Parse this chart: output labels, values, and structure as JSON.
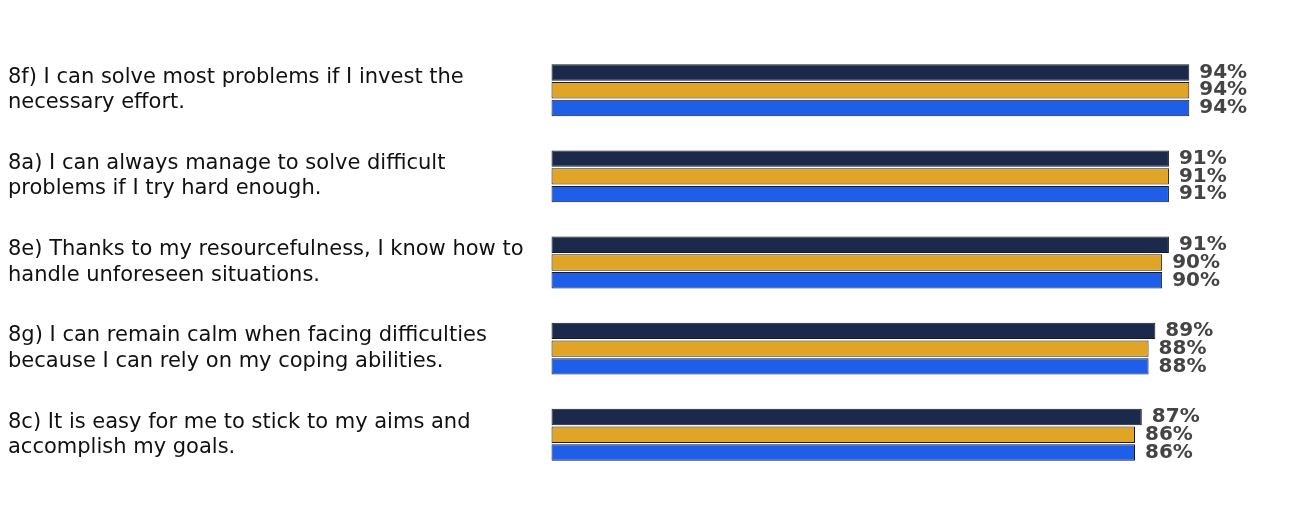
{
  "chart_data": {
    "type": "bar",
    "orientation": "horizontal",
    "categories": [
      "8f) I can solve most problems if I invest the necessary effort.",
      "8a) I can always manage to solve difficult problems if I try hard enough.",
      "8e) Thanks to my resourcefulness, I know how to handle unforeseen situations.",
      "8g) I can remain calm when facing difficulties because I can rely on my coping abilities.",
      "8c) It is easy for me to stick to my aims and accomplish my goals."
    ],
    "series": [
      {
        "color": "#1b2a4a",
        "values": [
          94,
          91,
          91,
          89,
          87
        ],
        "value_labels": [
          "94%",
          "91%",
          "91%",
          "89%",
          "87%"
        ]
      },
      {
        "color": "#e0a526",
        "values": [
          94,
          91,
          90,
          88,
          86
        ],
        "value_labels": [
          "94%",
          "91%",
          "90%",
          "88%",
          "86%"
        ]
      },
      {
        "color": "#1f5ee8",
        "values": [
          94,
          91,
          90,
          88,
          86
        ],
        "value_labels": [
          "94%",
          "91%",
          "90%",
          "88%",
          "86%"
        ]
      }
    ],
    "tick_labels": "y",
    "legend": false
  }
}
